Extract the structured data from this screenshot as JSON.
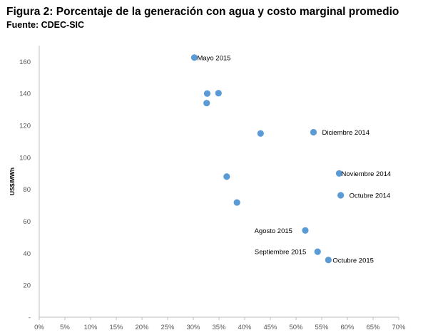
{
  "header": {
    "title": "Figura 2: Porcentaje de la generación con agua y costo marginal promedio",
    "source": "Fuente:  CDEC-SIC"
  },
  "chart_data": {
    "type": "scatter",
    "title": "Figura 2: Porcentaje de la generación con agua y costo marginal promedio",
    "xlabel": "",
    "ylabel": "US$/MWh",
    "xlim": [
      0,
      0.7
    ],
    "ylim": [
      0,
      170
    ],
    "x_ticks": [
      "0%",
      "5%",
      "10%",
      "15%",
      "20%",
      "25%",
      "30%",
      "35%",
      "40%",
      "45%",
      "50%",
      "55%",
      "60%",
      "65%",
      "70%"
    ],
    "y_ticks": [
      "-",
      "20",
      "40",
      "60",
      "80",
      "100",
      "120",
      "140",
      "160"
    ],
    "grid": false,
    "marker_color": "#5B9BD5",
    "points": [
      {
        "x": 0.302,
        "y": 162.5,
        "label": "Mayo 2015"
      },
      {
        "x": 0.327,
        "y": 140.0,
        "label": ""
      },
      {
        "x": 0.349,
        "y": 140.2,
        "label": ""
      },
      {
        "x": 0.326,
        "y": 134.0,
        "label": ""
      },
      {
        "x": 0.431,
        "y": 115.0,
        "label": ""
      },
      {
        "x": 0.534,
        "y": 115.8,
        "label": "Diciembre 2014"
      },
      {
        "x": 0.365,
        "y": 88.0,
        "label": ""
      },
      {
        "x": 0.584,
        "y": 90.0,
        "label": "Noviembre 2014"
      },
      {
        "x": 0.587,
        "y": 76.3,
        "label": "Octubre 2014"
      },
      {
        "x": 0.385,
        "y": 71.8,
        "label": ""
      },
      {
        "x": 0.518,
        "y": 54.3,
        "label": "Agosto 2015"
      },
      {
        "x": 0.542,
        "y": 41.0,
        "label": "Septiembre 2015"
      },
      {
        "x": 0.563,
        "y": 35.8,
        "label": "Octubre 2015"
      }
    ]
  }
}
